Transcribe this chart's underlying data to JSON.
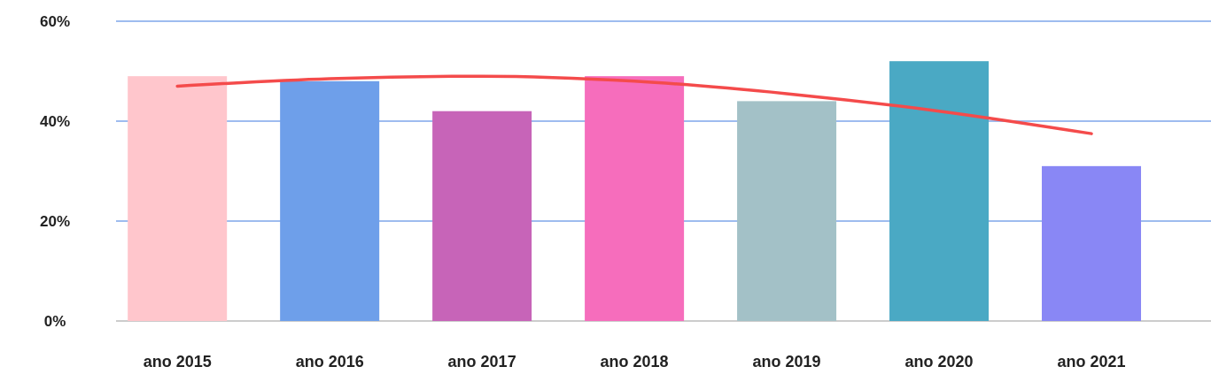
{
  "chart_data": {
    "type": "bar",
    "categories": [
      "ano 2015",
      "ano 2016",
      "ano 2017",
      "ano 2018",
      "ano 2019",
      "ano 2020",
      "ano 2021"
    ],
    "series": [
      {
        "values": [
          49,
          48,
          42,
          49,
          44,
          52,
          31
        ],
        "colors": [
          "#ffc6cc",
          "#6e9fea",
          "#c764b8",
          "#f66dbc",
          "#a3c1c7",
          "#4aa9c4",
          "#8987f5"
        ]
      },
      {
        "type": "line",
        "color": "#f44b4b",
        "values": [
          47,
          48.5,
          49,
          48,
          45.5,
          42,
          37.5
        ]
      }
    ],
    "ylim": [
      0,
      60
    ],
    "yticks": [
      {
        "value": 0,
        "label": "0%"
      },
      {
        "value": 20,
        "label": "20%"
      },
      {
        "value": 40,
        "label": "40%"
      },
      {
        "value": 60,
        "label": "60%"
      }
    ],
    "grid": "y",
    "marker": "none"
  }
}
